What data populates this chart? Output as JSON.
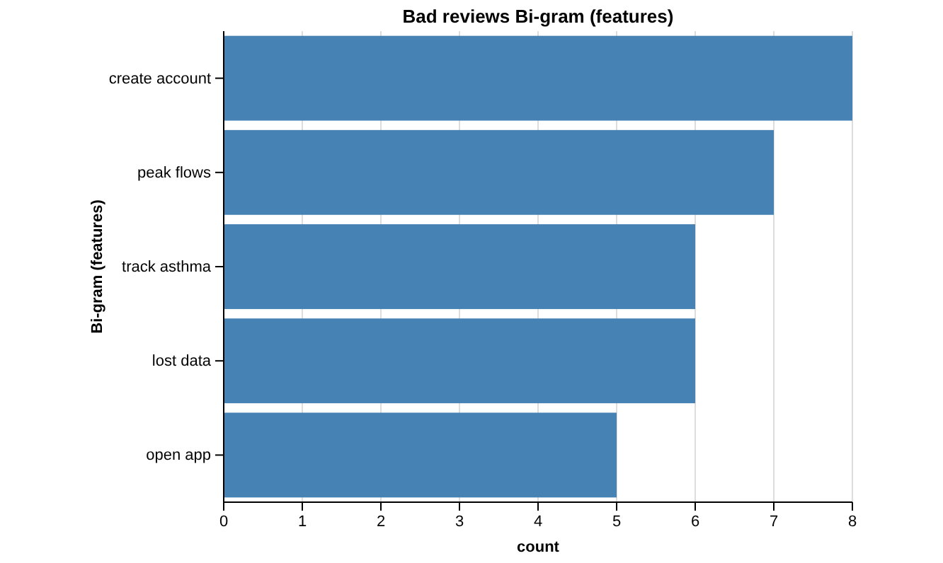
{
  "chart_data": {
    "type": "bar",
    "orientation": "horizontal",
    "title": "Bad reviews Bi-gram (features)",
    "xlabel": "count",
    "ylabel": "Bi-gram (features)",
    "categories": [
      "create account",
      "peak flows",
      "track asthma",
      "lost data",
      "open app"
    ],
    "values": [
      8,
      7,
      6,
      6,
      5
    ],
    "color": "#4682b4",
    "xlim": [
      0,
      8
    ],
    "xticks": [
      0,
      1,
      2,
      3,
      4,
      5,
      6,
      7,
      8
    ],
    "grid": "x"
  }
}
